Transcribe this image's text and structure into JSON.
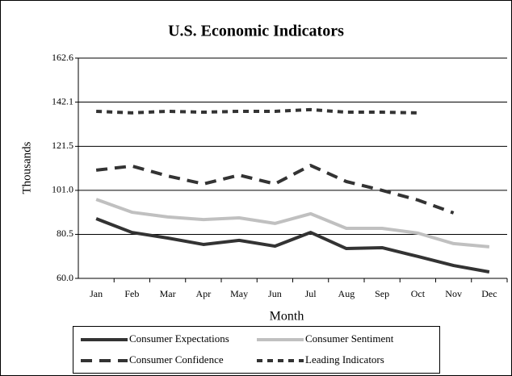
{
  "chart_data": {
    "type": "line",
    "title": "U.S. Economic Indicators",
    "y_label": "Thousands",
    "x_label": "Month",
    "categories": [
      "Jan",
      "Feb",
      "Mar",
      "Apr",
      "May",
      "Jun",
      "Jul",
      "Aug",
      "Sep",
      "Oct",
      "Nov",
      "Dec"
    ],
    "series": [
      {
        "name": "Consumer Expectations",
        "color": "#333333",
        "style": "solid",
        "values": [
          87.8,
          81.4,
          78.8,
          75.8,
          77.7,
          75.0,
          81.4,
          73.9,
          74.3,
          70.2,
          66.0,
          63.0
        ]
      },
      {
        "name": "Consumer Sentiment",
        "color": "#c0c0c0",
        "style": "solid",
        "values": [
          96.8,
          90.8,
          88.6,
          87.4,
          88.2,
          85.6,
          90.1,
          83.3,
          83.3,
          81.1,
          76.2,
          74.7
        ]
      },
      {
        "name": "Consumer Confidence",
        "color": "#333333",
        "style": "dashed",
        "values": [
          110.4,
          112.3,
          107.7,
          104.0,
          108.1,
          104.0,
          112.6,
          105.1,
          101.0,
          96.5,
          90.5,
          null
        ]
      },
      {
        "name": "Leading Indicators",
        "color": "#333333",
        "style": "dotted",
        "values": [
          137.8,
          137.1,
          137.8,
          137.4,
          137.8,
          137.8,
          138.6,
          137.4,
          137.4,
          137.1,
          null,
          null
        ]
      }
    ],
    "ylim": [
      60,
      162.6
    ],
    "yticks": [
      {
        "value": 60,
        "label": "60.0"
      },
      80.5,
      {
        "value": 101,
        "label": "101.0"
      },
      121.5,
      142.1,
      162.6
    ],
    "grid": true,
    "legend": "bottom"
  }
}
